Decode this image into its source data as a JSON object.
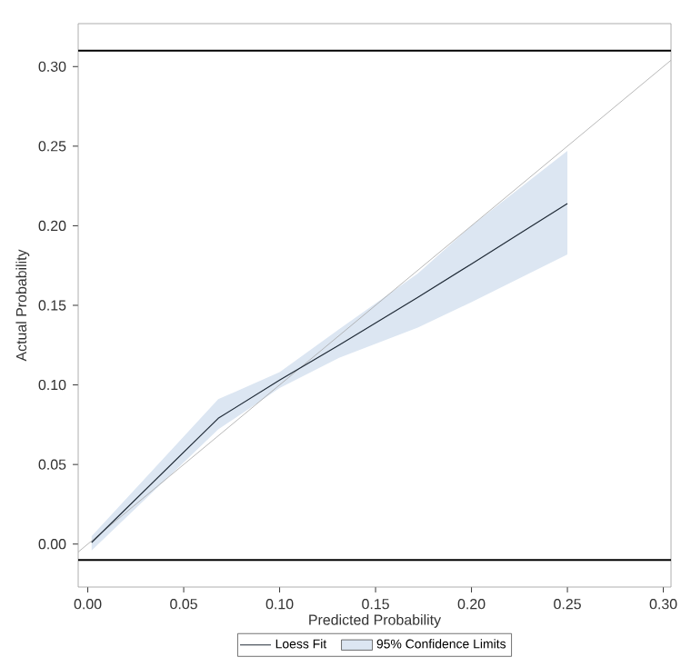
{
  "chart_data": {
    "type": "line",
    "xlabel": "Predicted Probability",
    "ylabel": "Actual Probability",
    "xlim": [
      -0.005,
      0.304
    ],
    "ylim": [
      -0.027,
      0.327
    ],
    "xticks": [
      {
        "value": 0,
        "label": "0.00"
      },
      {
        "value": 0.05,
        "label": "0.05"
      },
      {
        "value": 0.1,
        "label": "0.10"
      },
      {
        "value": 0.15,
        "label": "0.15"
      },
      {
        "value": 0.2,
        "label": "0.20"
      },
      {
        "value": 0.25,
        "label": "0.25"
      },
      {
        "value": 0.3,
        "label": "0.30"
      }
    ],
    "yticks": [
      {
        "value": 0,
        "label": "0.00"
      },
      {
        "value": 0.05,
        "label": "0.05"
      },
      {
        "value": 0.1,
        "label": "0.10"
      },
      {
        "value": 0.15,
        "label": "0.15"
      },
      {
        "value": 0.2,
        "label": "0.20"
      },
      {
        "value": 0.25,
        "label": "0.25"
      },
      {
        "value": 0.3,
        "label": "0.30"
      }
    ],
    "series": [
      {
        "color": "#a6a6a6",
        "x": [
          -0.005,
          0.304
        ],
        "values": [
          -0.005,
          0.304
        ]
      },
      {
        "name": "Loess Fit",
        "color": "#1f2a36",
        "x": [
          0.002,
          0.068,
          0.1,
          0.131,
          0.172,
          0.2,
          0.25
        ],
        "values": [
          0.001,
          0.079,
          0.103,
          0.125,
          0.155,
          0.176,
          0.214
        ],
        "lower": [
          -0.004,
          0.072,
          0.098,
          0.117,
          0.136,
          0.152,
          0.182
        ],
        "upper": [
          0.005,
          0.091,
          0.108,
          0.135,
          0.17,
          0.2,
          0.247
        ]
      },
      {
        "type": "area",
        "name": "95% Confidence Limits",
        "color": "#dce6f2"
      }
    ],
    "ref_lines": [
      {
        "axis": "y",
        "value": 0.31,
        "color": "#000000"
      },
      {
        "axis": "y",
        "value": -0.01,
        "color": "#000000"
      }
    ],
    "grid": false,
    "legend": "bottom",
    "marker": "none",
    "line_style": "solid"
  }
}
